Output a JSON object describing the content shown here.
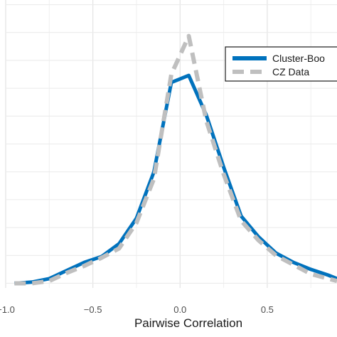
{
  "chart_data": {
    "type": "line",
    "title": "",
    "xlabel": "Pairwise Correlation",
    "ylabel": "",
    "xlim": [
      -1.0,
      0.9
    ],
    "ylim": [
      -0.02,
      1.22
    ],
    "x_ticks": [
      -1.0,
      -0.5,
      0.0,
      0.5
    ],
    "x_tick_labels": [
      "−1.0",
      "−0.5",
      "0.0",
      "0.5"
    ],
    "y_gridlines": [
      0.0,
      0.12,
      0.24,
      0.36,
      0.48,
      0.6,
      0.72,
      0.84,
      0.96,
      1.08,
      1.2
    ],
    "grid": true,
    "legend_position": "top-right",
    "series": [
      {
        "name": "Cluster-Boo",
        "color": "#0072BD",
        "style": "solid",
        "x": [
          -0.95,
          -0.85,
          -0.75,
          -0.65,
          -0.55,
          -0.45,
          -0.35,
          -0.25,
          -0.15,
          -0.05,
          0.05,
          0.15,
          0.25,
          0.35,
          0.45,
          0.55,
          0.65,
          0.75,
          0.85,
          0.9
        ],
        "y": [
          0.0,
          0.005,
          0.02,
          0.055,
          0.09,
          0.115,
          0.17,
          0.28,
          0.48,
          0.865,
          0.895,
          0.725,
          0.5,
          0.29,
          0.2,
          0.13,
          0.09,
          0.06,
          0.035,
          0.02
        ]
      },
      {
        "name": "CZ Data",
        "color": "#bfbfbf",
        "style": "dashed",
        "x": [
          -0.95,
          -0.85,
          -0.75,
          -0.65,
          -0.55,
          -0.45,
          -0.35,
          -0.25,
          -0.15,
          -0.05,
          0.05,
          0.15,
          0.25,
          0.35,
          0.45,
          0.55,
          0.65,
          0.75,
          0.85,
          0.9
        ],
        "y": [
          0.0,
          0.0,
          0.01,
          0.045,
          0.075,
          0.11,
          0.15,
          0.26,
          0.45,
          0.9,
          1.065,
          0.7,
          0.47,
          0.27,
          0.185,
          0.12,
          0.08,
          0.04,
          0.02,
          0.01
        ]
      }
    ]
  }
}
